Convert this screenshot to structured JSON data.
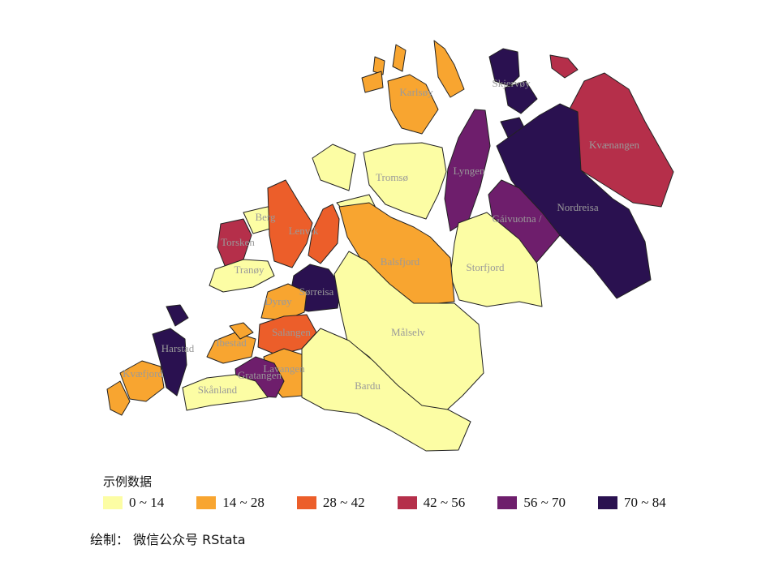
{
  "chart_data": {
    "type": "choropleth",
    "legend_title": "示例数据",
    "legend_placement": "bottom-left",
    "classes": [
      {
        "label": "0 ~ 14",
        "min": 0,
        "max": 14,
        "color": "#FCFDA4"
      },
      {
        "label": "14 ~ 28",
        "min": 14,
        "max": 28,
        "color": "#F8A530"
      },
      {
        "label": "28 ~ 42",
        "min": 28,
        "max": 42,
        "color": "#EC5E2A"
      },
      {
        "label": "42 ~ 56",
        "min": 42,
        "max": 56,
        "color": "#B52F4A"
      },
      {
        "label": "56 ~ 70",
        "min": 56,
        "max": 70,
        "color": "#6E1E6C"
      },
      {
        "label": "70 ~ 84",
        "min": 70,
        "max": 84,
        "color": "#2A1150"
      }
    ],
    "regions": [
      {
        "name": "Karlsøy",
        "class": 1
      },
      {
        "name": "Skjervøy",
        "class": 5
      },
      {
        "name": "Kvænangen",
        "class": 3
      },
      {
        "name": "Tromsø",
        "class": 0
      },
      {
        "name": "Lyngen",
        "class": 4
      },
      {
        "name": "Nordreisa",
        "class": 5
      },
      {
        "name": "Gáivuotna /",
        "class": 4
      },
      {
        "name": "Storfjord",
        "class": 0
      },
      {
        "name": "Balsfjord",
        "class": 1
      },
      {
        "name": "Berg",
        "class": 0
      },
      {
        "name": "Lenvik",
        "class": 2
      },
      {
        "name": "Torsken",
        "class": 3
      },
      {
        "name": "Tranøy",
        "class": 0
      },
      {
        "name": "Sørreisa",
        "class": 5
      },
      {
        "name": "Dyrøy",
        "class": 1
      },
      {
        "name": "Målselv",
        "class": 0
      },
      {
        "name": "Salangen",
        "class": 2
      },
      {
        "name": "Ibestad",
        "class": 1
      },
      {
        "name": "Harstad",
        "class": 5
      },
      {
        "name": "Kvæfjord",
        "class": 1
      },
      {
        "name": "Lavangen",
        "class": 1
      },
      {
        "name": "Gratangen",
        "class": 4
      },
      {
        "name": "Skånland",
        "class": 0
      },
      {
        "name": "Bardu",
        "class": 0
      }
    ]
  },
  "caption": "绘制： 微信公众号 RStata"
}
